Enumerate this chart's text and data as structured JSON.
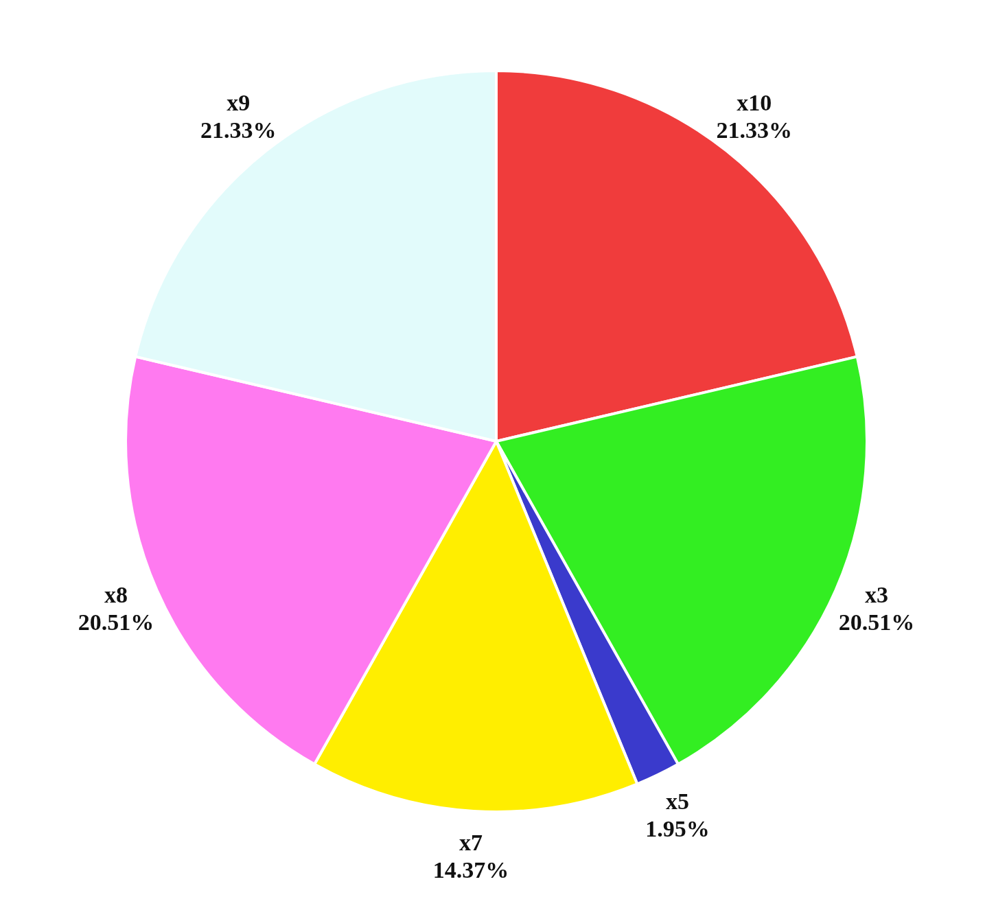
{
  "chart_data": {
    "type": "pie",
    "categories": [
      "x10",
      "x3",
      "x5",
      "x7",
      "x8",
      "x9"
    ],
    "values": [
      21.33,
      20.51,
      1.95,
      14.37,
      20.51,
      21.33
    ],
    "value_labels": [
      "21.33%",
      "20.51%",
      "1.95%",
      "14.37%",
      "20.51%",
      "21.33%"
    ],
    "colors": [
      "#f03c3c",
      "#33ee22",
      "#3a3acc",
      "#ffee00",
      "#ff7af0",
      "#e2fbfb"
    ]
  }
}
